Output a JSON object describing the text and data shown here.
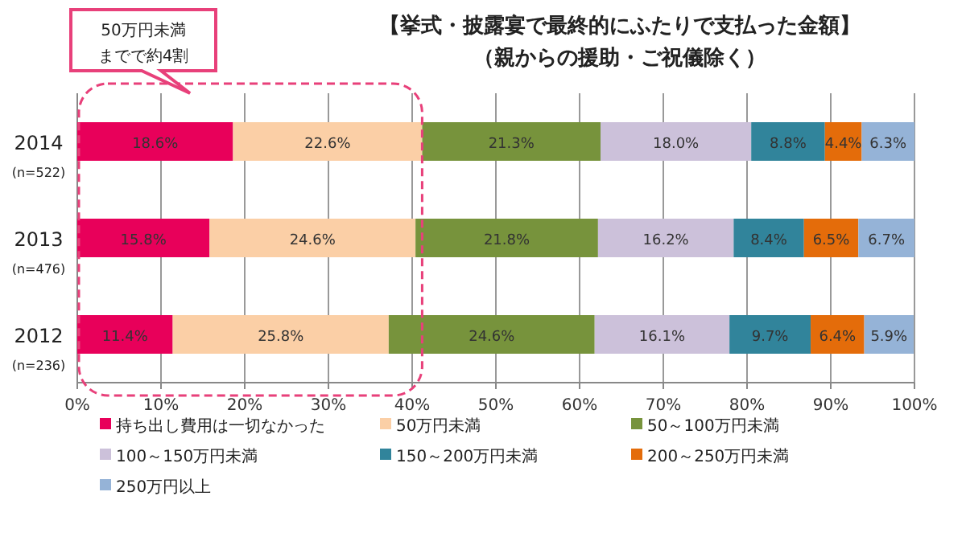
{
  "chart_data": {
    "type": "bar",
    "orientation": "horizontal",
    "stacked": true,
    "title": "【挙式・披露宴で最終的にふたりで支払った金額】",
    "subtitle": "（親からの援助・ご祝儀除く）",
    "categories": [
      "2014\n(n=522)",
      "2013\n(n=476)",
      "2012\n(n=236)"
    ],
    "series": [
      {
        "name": "持ち出し費用は一切なかった",
        "color": "#e8005a",
        "values": [
          18.6,
          15.8,
          11.4
        ],
        "value_labels": [
          "18.6%",
          "15.8%",
          "11.4%"
        ]
      },
      {
        "name": "50万円未満",
        "color": "#fbcfa6",
        "values": [
          22.6,
          24.6,
          25.8
        ],
        "value_labels": [
          "22.6%",
          "24.6%",
          "25.8%"
        ]
      },
      {
        "name": "50～100万円未満",
        "color": "#77933c",
        "values": [
          21.3,
          21.8,
          24.6
        ],
        "value_labels": [
          "21.3%",
          "21.8%",
          "24.6%"
        ]
      },
      {
        "name": "100～150万円未満",
        "color": "#ccc1da",
        "values": [
          18.0,
          16.2,
          16.1
        ],
        "value_labels": [
          "18.0%",
          "16.2%",
          "16.1%"
        ]
      },
      {
        "name": "150～200万円未満",
        "color": "#31849b",
        "values": [
          8.8,
          8.4,
          9.7
        ],
        "value_labels": [
          "8.8%",
          "8.4%",
          "9.7%"
        ]
      },
      {
        "name": "200～250万円未満",
        "color": "#e46c0a",
        "values": [
          4.4,
          6.5,
          6.4
        ],
        "value_labels": [
          "4.4%",
          "6.5%",
          "6.4%"
        ]
      },
      {
        "name": "250万円以上",
        "color": "#95b3d7",
        "values": [
          6.3,
          6.7,
          5.9
        ],
        "value_labels": [
          "6.3%",
          "6.7%",
          "5.9%"
        ]
      }
    ],
    "xlim": [
      0,
      100
    ],
    "xticks": [
      {
        "value": 0,
        "label": "0%"
      },
      {
        "value": 10,
        "label": "10%"
      },
      {
        "value": 20,
        "label": "20%"
      },
      {
        "value": 30,
        "label": "30%"
      },
      {
        "value": 40,
        "label": "40%"
      },
      {
        "value": 50,
        "label": "50%"
      },
      {
        "value": 60,
        "label": "60%"
      },
      {
        "value": 70,
        "label": "70%"
      },
      {
        "value": 80,
        "label": "80%"
      },
      {
        "value": 90,
        "label": "90%"
      },
      {
        "value": 100,
        "label": "100%"
      }
    ],
    "grid": "x",
    "legend": "bottom",
    "annotations": [
      "50万円未満までで約4割"
    ]
  }
}
